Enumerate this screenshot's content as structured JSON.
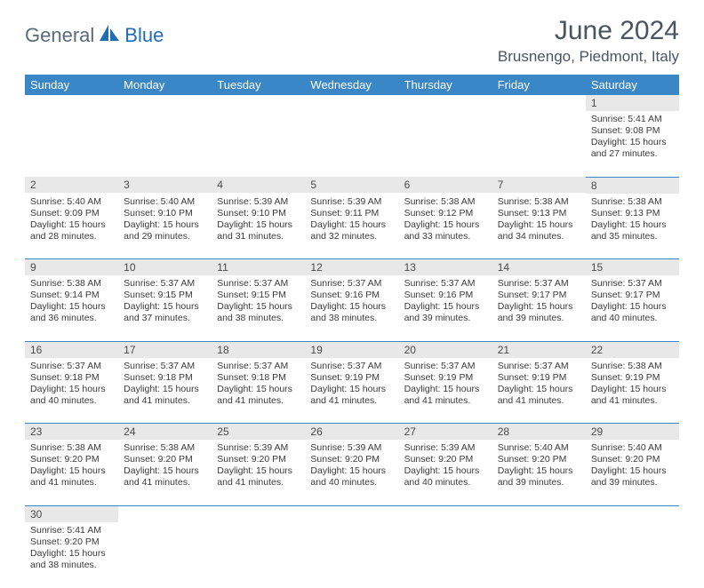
{
  "logo": {
    "part1": "General",
    "part2": "Blue"
  },
  "title": "June 2024",
  "location": "Brusnengo, Piedmont, Italy",
  "header_bg": "#3a87c8",
  "daynum_bg": "#e8e8e8",
  "border_color": "#3a87c8",
  "columns": [
    "Sunday",
    "Monday",
    "Tuesday",
    "Wednesday",
    "Thursday",
    "Friday",
    "Saturday"
  ],
  "weeks": [
    [
      null,
      null,
      null,
      null,
      null,
      null,
      {
        "n": "1",
        "sr": "5:41 AM",
        "ss": "9:08 PM",
        "dh": "15",
        "dm": "27"
      }
    ],
    [
      {
        "n": "2",
        "sr": "5:40 AM",
        "ss": "9:09 PM",
        "dh": "15",
        "dm": "28"
      },
      {
        "n": "3",
        "sr": "5:40 AM",
        "ss": "9:10 PM",
        "dh": "15",
        "dm": "29"
      },
      {
        "n": "4",
        "sr": "5:39 AM",
        "ss": "9:10 PM",
        "dh": "15",
        "dm": "31"
      },
      {
        "n": "5",
        "sr": "5:39 AM",
        "ss": "9:11 PM",
        "dh": "15",
        "dm": "32"
      },
      {
        "n": "6",
        "sr": "5:38 AM",
        "ss": "9:12 PM",
        "dh": "15",
        "dm": "33"
      },
      {
        "n": "7",
        "sr": "5:38 AM",
        "ss": "9:13 PM",
        "dh": "15",
        "dm": "34"
      },
      {
        "n": "8",
        "sr": "5:38 AM",
        "ss": "9:13 PM",
        "dh": "15",
        "dm": "35"
      }
    ],
    [
      {
        "n": "9",
        "sr": "5:38 AM",
        "ss": "9:14 PM",
        "dh": "15",
        "dm": "36"
      },
      {
        "n": "10",
        "sr": "5:37 AM",
        "ss": "9:15 PM",
        "dh": "15",
        "dm": "37"
      },
      {
        "n": "11",
        "sr": "5:37 AM",
        "ss": "9:15 PM",
        "dh": "15",
        "dm": "38"
      },
      {
        "n": "12",
        "sr": "5:37 AM",
        "ss": "9:16 PM",
        "dh": "15",
        "dm": "38"
      },
      {
        "n": "13",
        "sr": "5:37 AM",
        "ss": "9:16 PM",
        "dh": "15",
        "dm": "39"
      },
      {
        "n": "14",
        "sr": "5:37 AM",
        "ss": "9:17 PM",
        "dh": "15",
        "dm": "39"
      },
      {
        "n": "15",
        "sr": "5:37 AM",
        "ss": "9:17 PM",
        "dh": "15",
        "dm": "40"
      }
    ],
    [
      {
        "n": "16",
        "sr": "5:37 AM",
        "ss": "9:18 PM",
        "dh": "15",
        "dm": "40"
      },
      {
        "n": "17",
        "sr": "5:37 AM",
        "ss": "9:18 PM",
        "dh": "15",
        "dm": "41"
      },
      {
        "n": "18",
        "sr": "5:37 AM",
        "ss": "9:18 PM",
        "dh": "15",
        "dm": "41"
      },
      {
        "n": "19",
        "sr": "5:37 AM",
        "ss": "9:19 PM",
        "dh": "15",
        "dm": "41"
      },
      {
        "n": "20",
        "sr": "5:37 AM",
        "ss": "9:19 PM",
        "dh": "15",
        "dm": "41"
      },
      {
        "n": "21",
        "sr": "5:37 AM",
        "ss": "9:19 PM",
        "dh": "15",
        "dm": "41"
      },
      {
        "n": "22",
        "sr": "5:38 AM",
        "ss": "9:19 PM",
        "dh": "15",
        "dm": "41"
      }
    ],
    [
      {
        "n": "23",
        "sr": "5:38 AM",
        "ss": "9:20 PM",
        "dh": "15",
        "dm": "41"
      },
      {
        "n": "24",
        "sr": "5:38 AM",
        "ss": "9:20 PM",
        "dh": "15",
        "dm": "41"
      },
      {
        "n": "25",
        "sr": "5:39 AM",
        "ss": "9:20 PM",
        "dh": "15",
        "dm": "41"
      },
      {
        "n": "26",
        "sr": "5:39 AM",
        "ss": "9:20 PM",
        "dh": "15",
        "dm": "40"
      },
      {
        "n": "27",
        "sr": "5:39 AM",
        "ss": "9:20 PM",
        "dh": "15",
        "dm": "40"
      },
      {
        "n": "28",
        "sr": "5:40 AM",
        "ss": "9:20 PM",
        "dh": "15",
        "dm": "39"
      },
      {
        "n": "29",
        "sr": "5:40 AM",
        "ss": "9:20 PM",
        "dh": "15",
        "dm": "39"
      }
    ],
    [
      {
        "n": "30",
        "sr": "5:41 AM",
        "ss": "9:20 PM",
        "dh": "15",
        "dm": "38"
      },
      null,
      null,
      null,
      null,
      null,
      null
    ]
  ],
  "labels": {
    "sunrise": "Sunrise:",
    "sunset": "Sunset:",
    "daylight_prefix": "Daylight:",
    "hours_word": "hours",
    "and_word": "and",
    "minutes_word": "minutes."
  }
}
